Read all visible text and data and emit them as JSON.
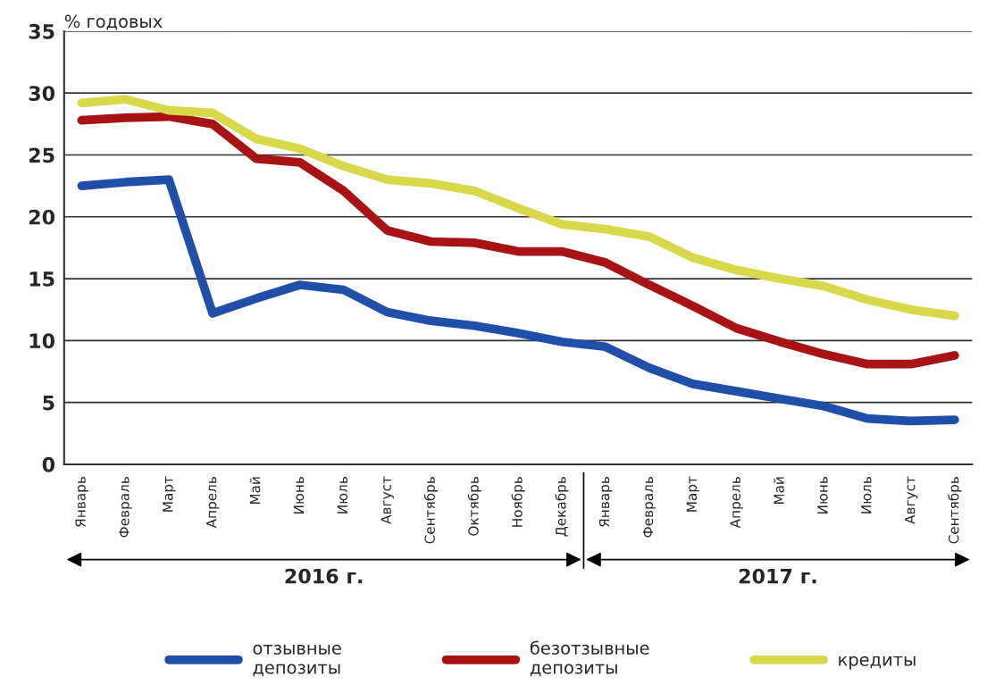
{
  "chart_data": {
    "type": "line",
    "ylabel": "% годовых",
    "categories": [
      "Январь",
      "Февраль",
      "Март",
      "Апрель",
      "Май",
      "Июнь",
      "Июль",
      "Август",
      "Сентябрь",
      "Октябрь",
      "Ноябрь",
      "Декабрь",
      "Январь",
      "Февраль",
      "Март",
      "Апрель",
      "Май",
      "Июнь",
      "Июль",
      "Август",
      "Сентябрь"
    ],
    "series": [
      {
        "name": "отзывные\nдепозиты",
        "color": "#1f4fa8",
        "values": [
          22.5,
          22.8,
          23.0,
          12.2,
          13.4,
          14.5,
          14.1,
          12.3,
          11.6,
          11.2,
          10.6,
          9.9,
          9.5,
          7.8,
          6.5,
          5.9,
          5.3,
          4.7,
          3.7,
          3.5,
          3.6
        ]
      },
      {
        "name": "безотзывные\nдепозиты",
        "color": "#a81414",
        "values": [
          27.8,
          28.0,
          28.1,
          27.5,
          24.7,
          24.4,
          22.1,
          18.9,
          18.0,
          17.9,
          17.2,
          17.2,
          16.3,
          14.5,
          12.8,
          11.0,
          9.9,
          8.9,
          8.1,
          8.1,
          8.8
        ]
      },
      {
        "name": "кредиты",
        "color": "#d8d84a",
        "values": [
          29.2,
          29.5,
          28.6,
          28.4,
          26.3,
          25.5,
          24.1,
          23.0,
          22.7,
          22.1,
          20.7,
          19.4,
          19.0,
          18.4,
          16.7,
          15.7,
          15.0,
          14.4,
          13.3,
          12.5,
          12.0
        ]
      }
    ],
    "ylim": [
      0,
      35
    ],
    "yticks": [
      0,
      5,
      10,
      15,
      20,
      25,
      30,
      35
    ],
    "grid": "y",
    "legend": "bottom",
    "line_style": "solid",
    "marker": "none",
    "annotations": [
      "2016 г.",
      "2017 г."
    ]
  }
}
